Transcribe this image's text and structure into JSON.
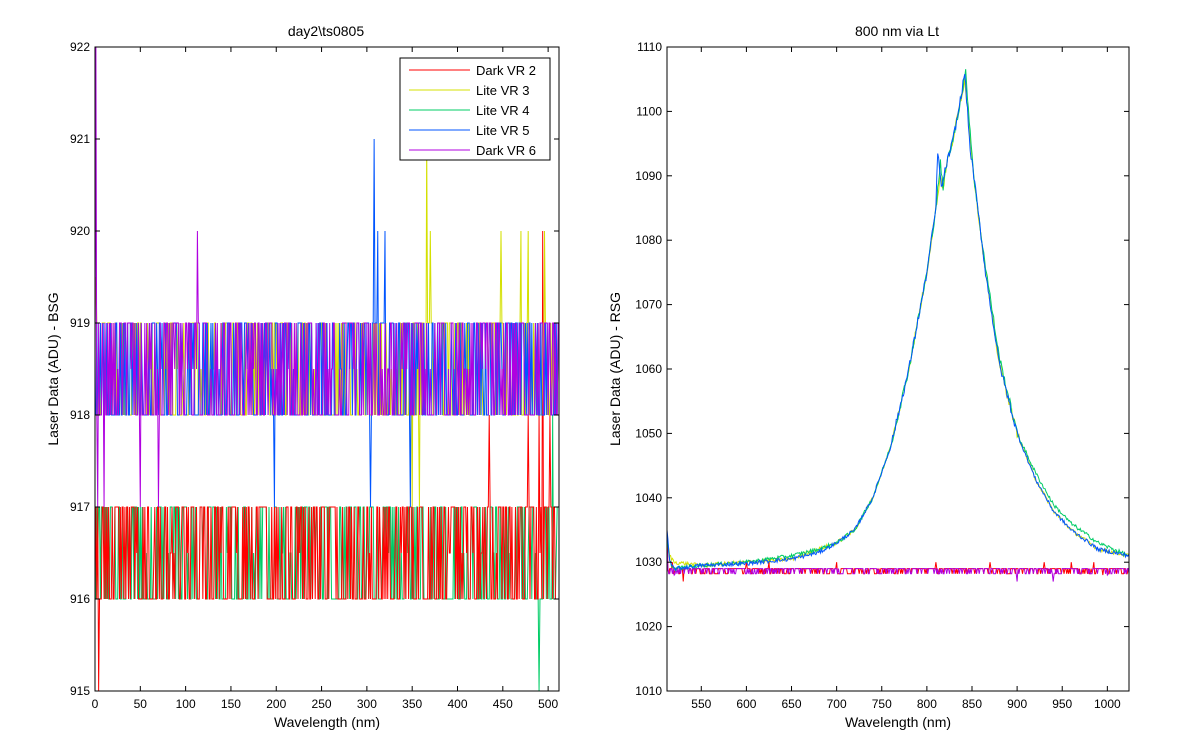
{
  "colors": {
    "dark_vr_2": "#ff0000",
    "lite_vr_3": "#d4e000",
    "lite_vr_4": "#00cc66",
    "lite_vr_5": "#0055ff",
    "dark_vr_6": "#b000e0"
  },
  "chart_data": [
    {
      "type": "line",
      "title": "day2\\ts0805",
      "xlabel": "Wavelength (nm)",
      "ylabel": "Laser Data (ADU) - BSG",
      "xlim": [
        0,
        512
      ],
      "ylim": [
        915,
        922
      ],
      "xticks": [
        0,
        50,
        100,
        150,
        200,
        250,
        300,
        350,
        400,
        450,
        500
      ],
      "yticks": [
        915,
        916,
        917,
        918,
        919,
        920,
        921,
        922
      ],
      "grid": false,
      "legend_position": "top-right",
      "series": [
        {
          "name": "Dark VR 2",
          "color": "#ff0000",
          "base": 916,
          "levels": [
            916,
            917
          ],
          "spikes": [
            [
              4,
              915
            ],
            [
              435,
              918
            ],
            [
              478,
              918
            ],
            [
              490,
              918
            ],
            [
              494,
              920
            ],
            [
              502,
              918
            ]
          ]
        },
        {
          "name": "Lite VR 3",
          "color": "#d4e000",
          "base": 918,
          "levels": [
            918,
            919
          ],
          "spikes": [
            [
              1,
              919.5
            ],
            [
              350,
              917
            ],
            [
              358,
              917
            ],
            [
              366,
              921
            ],
            [
              370,
              920
            ],
            [
              448,
              920
            ],
            [
              470,
              920
            ],
            [
              478,
              920
            ],
            [
              488,
              918
            ],
            [
              496,
              920
            ]
          ]
        },
        {
          "name": "Lite VR 4",
          "color": "#00cc66",
          "base": 916,
          "levels": [
            916,
            917
          ],
          "spikes": [
            [
              490,
              915
            ],
            [
              505,
              918
            ]
          ]
        },
        {
          "name": "Lite VR 5",
          "color": "#0055ff",
          "base": 918,
          "levels": [
            918,
            919
          ],
          "spikes": [
            [
              198,
              917
            ],
            [
              304,
              917
            ],
            [
              308,
              921
            ],
            [
              312,
              920
            ],
            [
              320,
              920
            ],
            [
              348,
              917
            ],
            [
              500,
              918
            ]
          ]
        },
        {
          "name": "Dark VR 6",
          "color": "#b000e0",
          "base": 918,
          "levels": [
            918,
            919
          ],
          "spikes": [
            [
              1,
              922
            ],
            [
              3,
              917
            ],
            [
              10,
              917
            ],
            [
              16,
              919
            ],
            [
              50,
              917
            ],
            [
              70,
              917
            ],
            [
              113,
              920
            ],
            [
              120,
              919
            ]
          ]
        }
      ]
    },
    {
      "type": "line",
      "title": "800 nm via Lt",
      "xlabel": "Wavelength (nm)",
      "ylabel": "Laser Data (ADU) - RSG",
      "xlim": [
        512,
        1024
      ],
      "ylim": [
        1010,
        1110
      ],
      "xticks": [
        550,
        600,
        650,
        700,
        750,
        800,
        850,
        900,
        950,
        1000
      ],
      "yticks": [
        1010,
        1020,
        1030,
        1040,
        1050,
        1060,
        1070,
        1080,
        1090,
        1100,
        1110
      ],
      "grid": false,
      "series": [
        {
          "name": "Lite VR 3",
          "color": "#d4e000",
          "kind": "peak",
          "points": [
            [
              512,
              1034
            ],
            [
              515,
              1031
            ],
            [
              520,
              1030
            ],
            [
              550,
              1029.5
            ],
            [
              600,
              1030
            ],
            [
              650,
              1030.5
            ],
            [
              680,
              1032
            ],
            [
              700,
              1033
            ],
            [
              720,
              1035
            ],
            [
              740,
              1040
            ],
            [
              760,
              1048
            ],
            [
              780,
              1060
            ],
            [
              800,
              1075
            ],
            [
              810,
              1085
            ],
            [
              815,
              1090
            ],
            [
              818,
              1088
            ],
            [
              822,
              1092
            ],
            [
              828,
              1095
            ],
            [
              835,
              1100
            ],
            [
              842,
              1105
            ],
            [
              848,
              1096
            ],
            [
              852,
              1090
            ],
            [
              858,
              1083
            ],
            [
              865,
              1075
            ],
            [
              880,
              1061
            ],
            [
              900,
              1050
            ],
            [
              920,
              1043
            ],
            [
              940,
              1038
            ],
            [
              960,
              1035
            ],
            [
              990,
              1032
            ],
            [
              1024,
              1031
            ]
          ]
        },
        {
          "name": "Lite VR 4",
          "color": "#00cc66",
          "kind": "peak",
          "points": [
            [
              512,
              1034
            ],
            [
              515,
              1030
            ],
            [
              520,
              1029
            ],
            [
              550,
              1029.5
            ],
            [
              600,
              1030
            ],
            [
              650,
              1031
            ],
            [
              680,
              1032
            ],
            [
              700,
              1033
            ],
            [
              720,
              1035
            ],
            [
              740,
              1040
            ],
            [
              760,
              1048
            ],
            [
              780,
              1060
            ],
            [
              800,
              1075
            ],
            [
              810,
              1085
            ],
            [
              815,
              1092
            ],
            [
              818,
              1088
            ],
            [
              822,
              1092
            ],
            [
              828,
              1095
            ],
            [
              835,
              1100
            ],
            [
              843,
              1106
            ],
            [
              848,
              1097
            ],
            [
              852,
              1090
            ],
            [
              858,
              1083
            ],
            [
              865,
              1076
            ],
            [
              880,
              1062
            ],
            [
              900,
              1050
            ],
            [
              920,
              1044
            ],
            [
              940,
              1039
            ],
            [
              960,
              1036
            ],
            [
              990,
              1033
            ],
            [
              1024,
              1031
            ]
          ]
        },
        {
          "name": "Lite VR 5",
          "color": "#0055ff",
          "kind": "peak",
          "points": [
            [
              512,
              1035
            ],
            [
              515,
              1030
            ],
            [
              520,
              1029
            ],
            [
              550,
              1029.5
            ],
            [
              600,
              1029.8
            ],
            [
              650,
              1030.5
            ],
            [
              680,
              1031.5
            ],
            [
              700,
              1033
            ],
            [
              720,
              1035
            ],
            [
              740,
              1040
            ],
            [
              760,
              1048
            ],
            [
              780,
              1060
            ],
            [
              800,
              1075
            ],
            [
              810,
              1085
            ],
            [
              812,
              1094
            ],
            [
              816,
              1088
            ],
            [
              822,
              1092
            ],
            [
              828,
              1095
            ],
            [
              835,
              1100
            ],
            [
              842,
              1106
            ],
            [
              848,
              1094
            ],
            [
              852,
              1090
            ],
            [
              858,
              1083
            ],
            [
              865,
              1075
            ],
            [
              880,
              1061
            ],
            [
              900,
              1050
            ],
            [
              920,
              1043
            ],
            [
              940,
              1038
            ],
            [
              960,
              1035
            ],
            [
              990,
              1032
            ],
            [
              1024,
              1031
            ]
          ]
        },
        {
          "name": "Dark VR 2",
          "color": "#ff0000",
          "kind": "flat",
          "base": 1029,
          "spikes": [
            [
              512,
              1035
            ],
            [
              518,
              1030
            ],
            [
              530,
              1027
            ],
            [
              600,
              1030
            ],
            [
              625,
              1030
            ],
            [
              700,
              1030
            ],
            [
              810,
              1030
            ],
            [
              870,
              1030
            ],
            [
              930,
              1030
            ],
            [
              960,
              1030
            ],
            [
              985,
              1030
            ],
            [
              995,
              1028
            ]
          ]
        },
        {
          "name": "Dark VR 6",
          "color": "#b000e0",
          "kind": "flat",
          "base": 1029,
          "spikes": [
            [
              512,
              1033
            ],
            [
              520,
              1028
            ],
            [
              900,
              1027
            ],
            [
              940,
              1027
            ],
            [
              1000,
              1028
            ]
          ]
        }
      ]
    }
  ]
}
